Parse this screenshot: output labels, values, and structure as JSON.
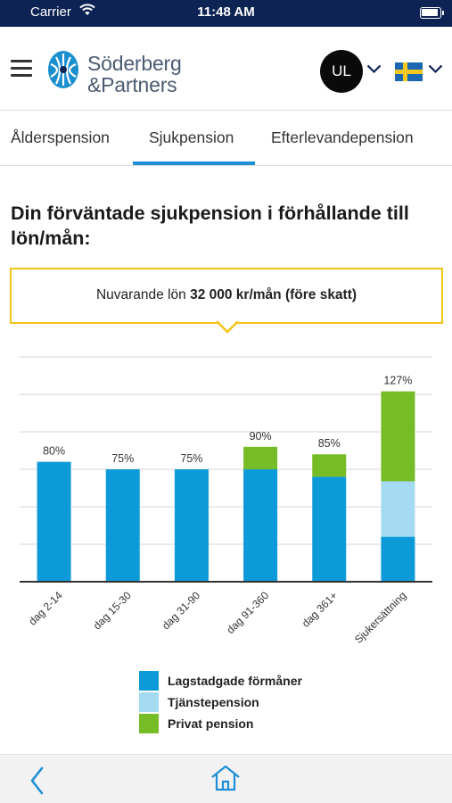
{
  "status": {
    "carrier": "Carrier",
    "time": "11:48 AM"
  },
  "header": {
    "logo_line1": "Söderberg",
    "logo_line2": "&Partners",
    "avatar_initials": "UL",
    "language_flag": "sweden-flag"
  },
  "tabs": [
    {
      "label": "Ålderspension",
      "selected": false
    },
    {
      "label": "Sjukpension",
      "selected": true
    },
    {
      "label": "Efterlevandepension",
      "selected": false
    }
  ],
  "title": "Din förväntade sjukpension i förhållande till lön/mån:",
  "salary": {
    "prefix": "Nuvarande lön",
    "value": "32 000 kr/mån (före skatt)"
  },
  "chart_data": {
    "type": "bar",
    "stacked": true,
    "categories": [
      "dag 2-14",
      "dag 15-30",
      "dag 31-90",
      "dag 91-360",
      "dag 361+",
      "Sjukersättning"
    ],
    "totals_labels": [
      "80%",
      "75%",
      "75%",
      "90%",
      "85%",
      "127%"
    ],
    "series": [
      {
        "name": "Lagstadgade förmåner",
        "color": "#0c9ad8",
        "values": [
          80,
          75,
          75,
          75,
          70,
          30
        ]
      },
      {
        "name": "Tjänstepension",
        "color": "#a4daf2",
        "values": [
          0,
          0,
          0,
          0,
          0,
          37
        ]
      },
      {
        "name": "Privat pension",
        "color": "#76bc26",
        "values": [
          0,
          0,
          0,
          15,
          15,
          60
        ]
      }
    ],
    "ylim": [
      0,
      150
    ],
    "grid": true,
    "legend_position": "bottom"
  },
  "bottom_nav": {
    "back_icon": "back-chevron-icon",
    "home_icon": "home-icon"
  },
  "colors": {
    "brand_dark": "#0d2353",
    "accent_blue": "#1c8fd6",
    "highlight_yellow": "#f2c318"
  }
}
